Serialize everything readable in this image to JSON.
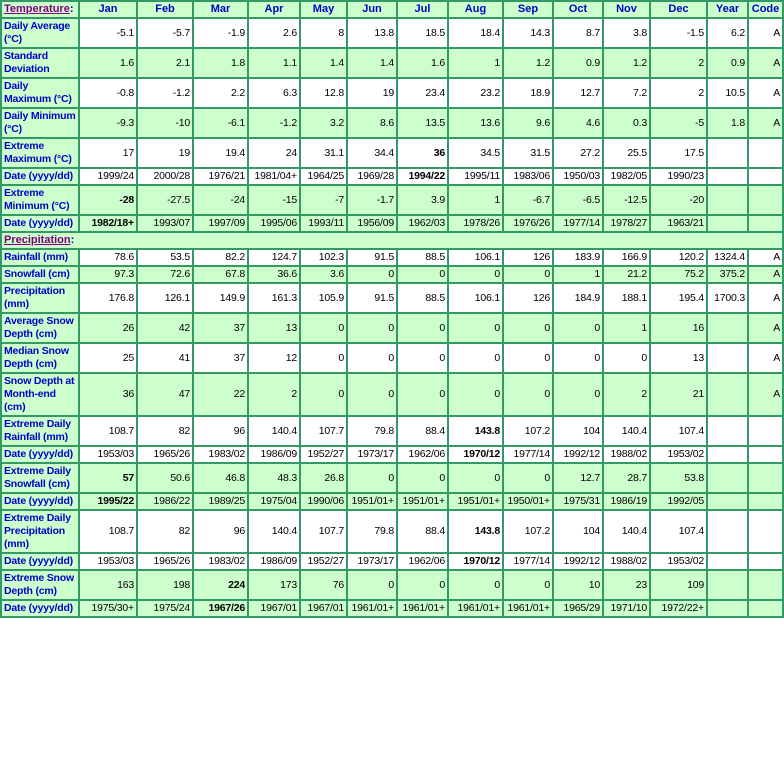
{
  "table": {
    "corner": {
      "label": "Temperature",
      "colon": ":"
    },
    "months": [
      "Jan",
      "Feb",
      "Mar",
      "Apr",
      "May",
      "Jun",
      "Jul",
      "Aug",
      "Sep",
      "Oct",
      "Nov",
      "Dec"
    ],
    "year_header": "Year",
    "code_header": "Code",
    "colors": {
      "grid": "#339966",
      "shade_green": "#ccffcc",
      "label_blue": "#0000cc",
      "section_purple": "#800080",
      "value_black": "#000000"
    },
    "sections": [
      {
        "title": null,
        "rows": [
          {
            "label": "Daily Average (°C)",
            "values": [
              "-5.1",
              "-5.7",
              "-1.9",
              "2.6",
              "8",
              "13.8",
              "18.5",
              "18.4",
              "14.3",
              "8.7",
              "3.8",
              "-1.5"
            ],
            "year": "6.2",
            "code": "A",
            "shade": false,
            "bold": []
          },
          {
            "label": "Standard Deviation",
            "values": [
              "1.6",
              "2.1",
              "1.8",
              "1.1",
              "1.4",
              "1.4",
              "1.6",
              "1",
              "1.2",
              "0.9",
              "1.2",
              "2"
            ],
            "year": "0.9",
            "code": "A",
            "shade": true,
            "bold": []
          },
          {
            "label": "Daily Maximum (°C)",
            "values": [
              "-0.8",
              "-1.2",
              "2.2",
              "6.3",
              "12.8",
              "19",
              "23.4",
              "23.2",
              "18.9",
              "12.7",
              "7.2",
              "2"
            ],
            "year": "10.5",
            "code": "A",
            "shade": false,
            "bold": []
          },
          {
            "label": "Daily Minimum (°C)",
            "values": [
              "-9.3",
              "-10",
              "-6.1",
              "-1.2",
              "3.2",
              "8.6",
              "13.5",
              "13.6",
              "9.6",
              "4.6",
              "0.3",
              "-5"
            ],
            "year": "1.8",
            "code": "A",
            "shade": true,
            "bold": []
          },
          {
            "label": "Extreme Maximum (°C)",
            "values": [
              "17",
              "19",
              "19.4",
              "24",
              "31.1",
              "34.4",
              "36",
              "34.5",
              "31.5",
              "27.2",
              "25.5",
              "17.5"
            ],
            "year": "",
            "code": "",
            "shade": false,
            "bold": [
              6
            ]
          },
          {
            "label": "Date (yyyy/dd)",
            "values": [
              "1999/24",
              "2000/28",
              "1976/21",
              "1981/04+",
              "1964/25",
              "1969/28",
              "1994/22",
              "1995/11",
              "1983/06",
              "1950/03",
              "1982/05",
              "1990/23"
            ],
            "year": "",
            "code": "",
            "shade": false,
            "bold": [
              6
            ]
          },
          {
            "label": "Extreme Minimum (°C)",
            "values": [
              "-28",
              "-27.5",
              "-24",
              "-15",
              "-7",
              "-1.7",
              "3.9",
              "1",
              "-6.7",
              "-6.5",
              "-12.5",
              "-20"
            ],
            "year": "",
            "code": "",
            "shade": true,
            "bold": [
              0
            ]
          },
          {
            "label": "Date (yyyy/dd)",
            "values": [
              "1982/18+",
              "1993/07",
              "1997/09",
              "1995/06",
              "1993/11",
              "1956/09",
              "1962/03",
              "1978/26",
              "1976/26",
              "1977/14",
              "1978/27",
              "1963/21"
            ],
            "year": "",
            "code": "",
            "shade": true,
            "bold": [
              0
            ]
          }
        ]
      },
      {
        "title": "Precipitation",
        "rows": [
          {
            "label": "Rainfall (mm)",
            "values": [
              "78.6",
              "53.5",
              "82.2",
              "124.7",
              "102.3",
              "91.5",
              "88.5",
              "106.1",
              "126",
              "183.9",
              "166.9",
              "120.2"
            ],
            "year": "1324.4",
            "code": "A",
            "shade": false,
            "bold": []
          },
          {
            "label": "Snowfall (cm)",
            "values": [
              "97.3",
              "72.6",
              "67.8",
              "36.6",
              "3.6",
              "0",
              "0",
              "0",
              "0",
              "1",
              "21.2",
              "75.2"
            ],
            "year": "375.2",
            "code": "A",
            "shade": true,
            "bold": []
          },
          {
            "label": "Precipitation (mm)",
            "values": [
              "176.8",
              "126.1",
              "149.9",
              "161.3",
              "105.9",
              "91.5",
              "88.5",
              "106.1",
              "126",
              "184.9",
              "188.1",
              "195.4"
            ],
            "year": "1700.3",
            "code": "A",
            "shade": false,
            "bold": []
          },
          {
            "label": "Average Snow Depth (cm)",
            "values": [
              "26",
              "42",
              "37",
              "13",
              "0",
              "0",
              "0",
              "0",
              "0",
              "0",
              "1",
              "16"
            ],
            "year": "",
            "code": "A",
            "shade": true,
            "bold": []
          },
          {
            "label": "Median Snow Depth (cm)",
            "values": [
              "25",
              "41",
              "37",
              "12",
              "0",
              "0",
              "0",
              "0",
              "0",
              "0",
              "0",
              "13"
            ],
            "year": "",
            "code": "A",
            "shade": false,
            "bold": []
          },
          {
            "label": "Snow Depth at Month-end (cm)",
            "values": [
              "36",
              "47",
              "22",
              "2",
              "0",
              "0",
              "0",
              "0",
              "0",
              "0",
              "2",
              "21"
            ],
            "year": "",
            "code": "A",
            "shade": true,
            "bold": []
          },
          {
            "label": "Extreme Daily Rainfall (mm)",
            "values": [
              "108.7",
              "82",
              "96",
              "140.4",
              "107.7",
              "79.8",
              "88.4",
              "143.8",
              "107.2",
              "104",
              "140.4",
              "107.4"
            ],
            "year": "",
            "code": "",
            "shade": false,
            "bold": [
              7
            ]
          },
          {
            "label": "Date (yyyy/dd)",
            "values": [
              "1953/03",
              "1965/26",
              "1983/02",
              "1986/09",
              "1952/27",
              "1973/17",
              "1962/06",
              "1970/12",
              "1977/14",
              "1992/12",
              "1988/02",
              "1953/02"
            ],
            "year": "",
            "code": "",
            "shade": false,
            "bold": [
              7
            ]
          },
          {
            "label": "Extreme Daily Snowfall (cm)",
            "values": [
              "57",
              "50.6",
              "46.8",
              "48.3",
              "26.8",
              "0",
              "0",
              "0",
              "0",
              "12.7",
              "28.7",
              "53.8"
            ],
            "year": "",
            "code": "",
            "shade": true,
            "bold": [
              0
            ]
          },
          {
            "label": "Date (yyyy/dd)",
            "values": [
              "1995/22",
              "1986/22",
              "1989/25",
              "1975/04",
              "1990/06",
              "1951/01+",
              "1951/01+",
              "1951/01+",
              "1950/01+",
              "1975/31",
              "1986/19",
              "1992/05"
            ],
            "year": "",
            "code": "",
            "shade": true,
            "bold": [
              0
            ]
          },
          {
            "label": "Extreme Daily Precipitation (mm)",
            "values": [
              "108.7",
              "82",
              "96",
              "140.4",
              "107.7",
              "79.8",
              "88.4",
              "143.8",
              "107.2",
              "104",
              "140.4",
              "107.4"
            ],
            "year": "",
            "code": "",
            "shade": false,
            "bold": [
              7
            ]
          },
          {
            "label": "Date (yyyy/dd)",
            "values": [
              "1953/03",
              "1965/26",
              "1983/02",
              "1986/09",
              "1952/27",
              "1973/17",
              "1962/06",
              "1970/12",
              "1977/14",
              "1992/12",
              "1988/02",
              "1953/02"
            ],
            "year": "",
            "code": "",
            "shade": false,
            "bold": [
              7
            ]
          },
          {
            "label": "Extreme Snow Depth (cm)",
            "values": [
              "163",
              "198",
              "224",
              "173",
              "76",
              "0",
              "0",
              "0",
              "0",
              "10",
              "23",
              "109"
            ],
            "year": "",
            "code": "",
            "shade": true,
            "bold": [
              2
            ]
          },
          {
            "label": "Date (yyyy/dd)",
            "values": [
              "1975/30+",
              "1975/24",
              "1967/26",
              "1967/01",
              "1967/01",
              "1961/01+",
              "1961/01+",
              "1961/01+",
              "1961/01+",
              "1965/29",
              "1971/10",
              "1972/22+"
            ],
            "year": "",
            "code": "",
            "shade": true,
            "bold": [
              2
            ]
          }
        ]
      }
    ]
  }
}
